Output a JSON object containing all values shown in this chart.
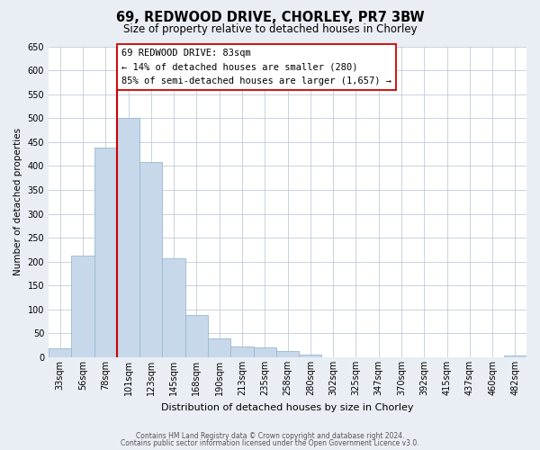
{
  "title": "69, REDWOOD DRIVE, CHORLEY, PR7 3BW",
  "subtitle": "Size of property relative to detached houses in Chorley",
  "xlabel": "Distribution of detached houses by size in Chorley",
  "ylabel": "Number of detached properties",
  "bin_labels": [
    "33sqm",
    "56sqm",
    "78sqm",
    "101sqm",
    "123sqm",
    "145sqm",
    "168sqm",
    "190sqm",
    "213sqm",
    "235sqm",
    "258sqm",
    "280sqm",
    "302sqm",
    "325sqm",
    "347sqm",
    "370sqm",
    "392sqm",
    "415sqm",
    "437sqm",
    "460sqm",
    "482sqm"
  ],
  "bar_values": [
    18,
    213,
    438,
    500,
    408,
    207,
    88,
    40,
    22,
    20,
    13,
    5,
    0,
    0,
    0,
    0,
    0,
    0,
    0,
    0,
    3
  ],
  "bar_color": "#c6d8ea",
  "bar_edge_color": "#9ab8d0",
  "property_bin_index": 2,
  "red_line_color": "#cc0000",
  "annotation_line1": "69 REDWOOD DRIVE: 83sqm",
  "annotation_line2": "← 14% of detached houses are smaller (280)",
  "annotation_line3": "85% of semi-detached houses are larger (1,657) →",
  "annotation_box_facecolor": "#ffffff",
  "annotation_box_edgecolor": "#cc0000",
  "ylim": [
    0,
    650
  ],
  "yticks": [
    0,
    50,
    100,
    150,
    200,
    250,
    300,
    350,
    400,
    450,
    500,
    550,
    600,
    650
  ],
  "footer_line1": "Contains HM Land Registry data © Crown copyright and database right 2024.",
  "footer_line2": "Contains public sector information licensed under the Open Government Licence v3.0.",
  "bg_color": "#e8eef4",
  "plot_bg_color": "#ffffff",
  "grid_color": "#c0ccd8",
  "title_fontsize": 10.5,
  "subtitle_fontsize": 8.5,
  "xlabel_fontsize": 8,
  "ylabel_fontsize": 7.5,
  "tick_fontsize": 7,
  "annotation_fontsize": 7.5,
  "footer_fontsize": 5.5
}
